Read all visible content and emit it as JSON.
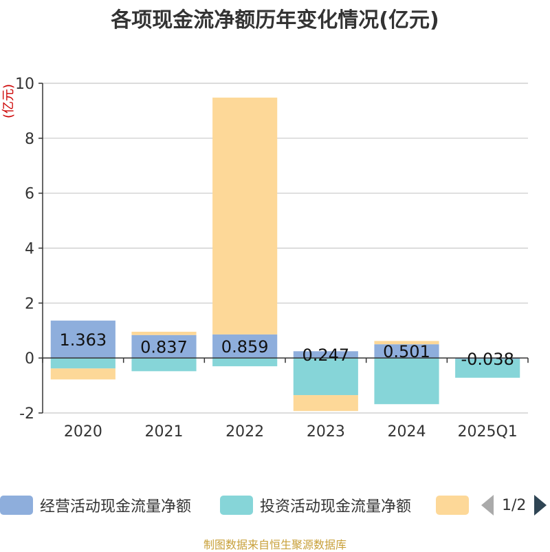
{
  "title": "各项现金流净额历年变化情况(亿元)",
  "source": "制图数据来自恒生聚源数据库",
  "legend_pager": {
    "text": "1/2"
  },
  "chart_data": {
    "type": "bar",
    "stacked": true,
    "title": "各项现金流净额历年变化情况(亿元)",
    "ylabel": "(亿元)",
    "xlabel": "",
    "ylim": [
      -2,
      10
    ],
    "yticks": [
      -2,
      0,
      2,
      4,
      6,
      8,
      10
    ],
    "categories": [
      "2020",
      "2021",
      "2022",
      "2023",
      "2024",
      "2025Q1"
    ],
    "series": [
      {
        "name": "经营活动现金流量净额",
        "color": "#8eaedc",
        "values": [
          1.363,
          0.837,
          0.859,
          0.247,
          0.501,
          -0.038
        ],
        "labels": [
          "1.363",
          "0.837",
          "0.859",
          "0.247",
          "0.501",
          "-0.038"
        ]
      },
      {
        "name": "投资活动现金流量净额",
        "color": "#86d5d8",
        "values": [
          -0.38,
          -0.48,
          -0.3,
          -1.35,
          -1.68,
          -0.68
        ]
      },
      {
        "name": "",
        "color": "#fdd898",
        "values": [
          -0.4,
          0.12,
          8.62,
          -0.58,
          0.12,
          0.0
        ]
      }
    ],
    "grid": true
  }
}
